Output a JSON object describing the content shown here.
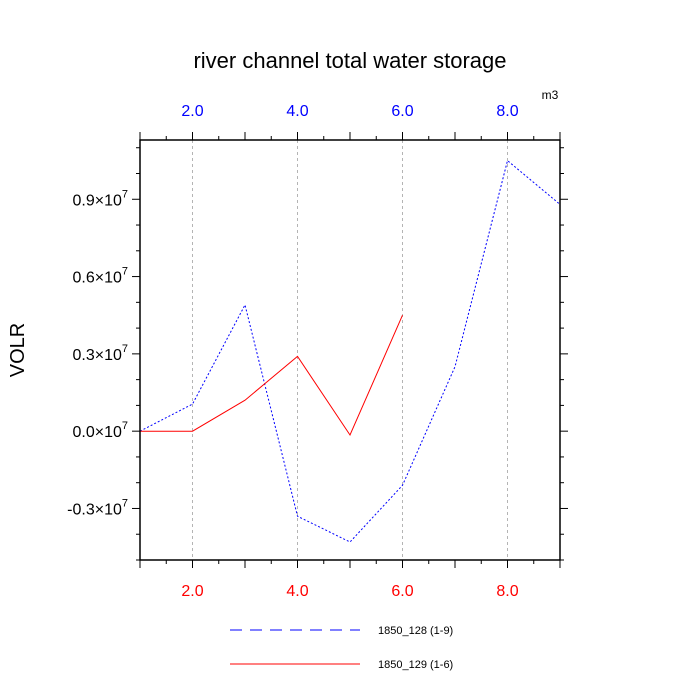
{
  "chart_data": {
    "type": "line",
    "title": "river channel total water storage",
    "ylabel": "VOLR",
    "top_axis_unit": "m3",
    "xlim": [
      1,
      9
    ],
    "ylim": [
      -5000000,
      11300000
    ],
    "x_ticks": [
      {
        "value": 2,
        "label": "2.0"
      },
      {
        "value": 4,
        "label": "4.0"
      },
      {
        "value": 6,
        "label": "6.0"
      },
      {
        "value": 8,
        "label": "8.0"
      }
    ],
    "y_ticks": [
      {
        "value": -3000000,
        "mantissa": "-0.3",
        "times": "×10",
        "exponent": "7"
      },
      {
        "value": 0,
        "mantissa": "0.0",
        "times": "×10",
        "exponent": "7"
      },
      {
        "value": 3000000,
        "mantissa": "0.3",
        "times": "×10",
        "exponent": "7"
      },
      {
        "value": 6000000,
        "mantissa": "0.6",
        "times": "×10",
        "exponent": "7"
      },
      {
        "value": 9000000,
        "mantissa": "0.9",
        "times": "×10",
        "exponent": "7"
      }
    ],
    "grid": "vertical dashed at major x ticks",
    "legend_position": "bottom",
    "series": [
      {
        "name": "1850_128 (1-9)",
        "color": "#0000ff",
        "style": "dashed",
        "x": [
          1,
          2,
          3,
          4,
          5,
          6,
          7,
          8,
          9
        ],
        "y": [
          0,
          1050000,
          4900000,
          -3300000,
          -4300000,
          -2100000,
          2500000,
          10500000,
          8800000
        ]
      },
      {
        "name": "1850_129 (1-6)",
        "color": "#ff0000",
        "style": "solid",
        "x": [
          1,
          2,
          3,
          4,
          5,
          6
        ],
        "y": [
          0,
          0,
          1200000,
          2900000,
          -150000,
          4500000
        ]
      }
    ]
  }
}
